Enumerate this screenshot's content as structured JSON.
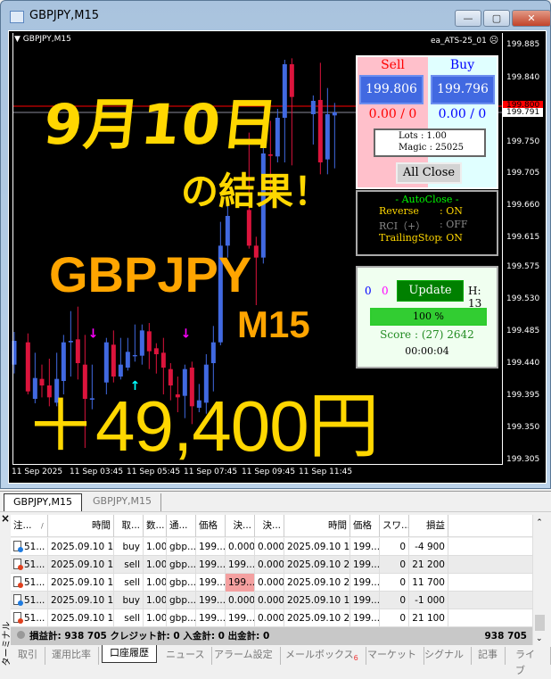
{
  "window": {
    "title": "GBPJPY,M15",
    "minimize": "—",
    "maximize": "▢",
    "close": "✕"
  },
  "chart": {
    "symbol_label": "GBPJPY,M15",
    "ea_label": "ea_ATS-25_01",
    "ea_status_icon": "☹",
    "price_ticks": [
      "199.885",
      "199.840",
      "199.750",
      "199.705",
      "199.660",
      "199.615",
      "199.575",
      "199.530",
      "199.485",
      "199.440",
      "199.395",
      "199.350",
      "199.305"
    ],
    "bid_marker": "199.800",
    "ask_marker": "199.791",
    "time_ticks": [
      "11 Sep 2025",
      "11 Sep 03:45",
      "11 Sep 05:45",
      "11 Sep 07:45",
      "11 Sep 09:45",
      "11 Sep 11:45"
    ],
    "colors": {
      "bull": "#4169e1",
      "bear": "#dc143c",
      "overlay_yellow": "#ffd700",
      "overlay_orange": "#ffa500"
    }
  },
  "overlay": {
    "date": "9月10日",
    "result": "の結果！",
    "pair": "GBPJPY",
    "timeframe": "M15",
    "profit": "＋49,400円"
  },
  "panel": {
    "sell_label": "Sell",
    "buy_label": "Buy",
    "sell_price": "199.806",
    "buy_price": "199.796",
    "sell_pl": "0.00 / 0",
    "buy_pl": "0.00 / 0",
    "lots": "Lots   : 1.00",
    "magic": "Magic : 25025",
    "all_close": "All Close",
    "autoclose_title": "- AutoClose -",
    "autoclose": [
      {
        "label": "Reverse",
        "value": ": ON"
      },
      {
        "label": "RCI（+）",
        "value": ": OFF"
      },
      {
        "label": "TrailingStop",
        "value": ": ON"
      }
    ],
    "count_blue": "0",
    "count_magenta": "0",
    "update": "Update",
    "h": "H: 13",
    "progress_text": "100 %",
    "progress": 100,
    "score": "Score : (27) 2642",
    "timer": "00:00:04"
  },
  "chart_tabs": [
    "GBPJPY,M15",
    "GBPJPY,M15"
  ],
  "terminal": {
    "close": "×",
    "side_label": "ターミナル",
    "headers": [
      "注...",
      "時間",
      "取...",
      "数...",
      "通...",
      "価格",
      "決...",
      "決...",
      "時間",
      "価格",
      "スワ...",
      "損益"
    ],
    "rows": [
      [
        "51...",
        "2025.09.10 14...",
        "buy",
        "1.00",
        "gbp...",
        "199....",
        "0.000",
        "0.000",
        "2025.09.10 14...",
        "199....",
        "0",
        "-4 900"
      ],
      [
        "51...",
        "2025.09.10 14...",
        "sell",
        "1.00",
        "gbp...",
        "199....",
        "199....",
        "0.000",
        "2025.09.10 22...",
        "199....",
        "0",
        "21 200"
      ],
      [
        "51...",
        "2025.09.10 15...",
        "sell",
        "1.00",
        "gbp...",
        "199....",
        "199....",
        "0.000",
        "2025.09.10 20...",
        "199....",
        "0",
        "11 700"
      ],
      [
        "51...",
        "2025.09.10 16...",
        "buy",
        "1.00",
        "gbp...",
        "199....",
        "0.000",
        "0.000",
        "2025.09.10 18...",
        "199....",
        "0",
        "-1 000"
      ],
      [
        "51...",
        "2025.09.10 18...",
        "sell",
        "1.00",
        "gbp...",
        "199....",
        "199....",
        "0.000",
        "2025.09.10 21...",
        "199....",
        "0",
        "21 100"
      ]
    ],
    "summary": "損益計: 938 705  クレジット計: 0  入金計: 0  出金計: 0",
    "summary_total": "938 705",
    "tabs": [
      "取引",
      "運用比率",
      "口座履歴",
      "ニュース",
      "アラーム設定",
      "メールボックス",
      "マーケット",
      "シグナル",
      "記事",
      "ライブ"
    ],
    "mailbox_badge": "6",
    "active_tab": "口座履歴"
  }
}
